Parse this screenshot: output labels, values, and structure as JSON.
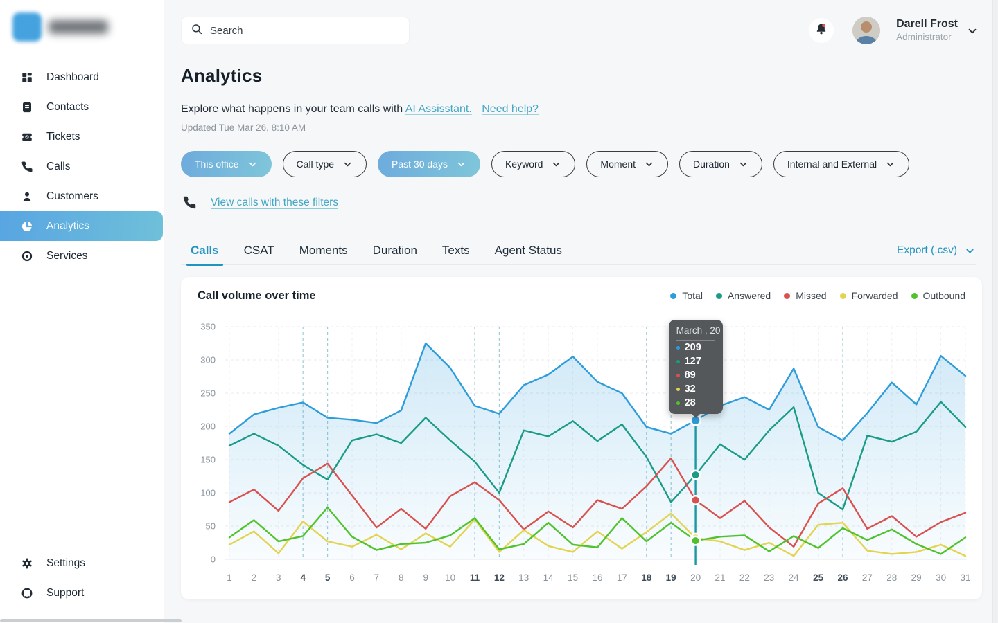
{
  "theme": {
    "accent_blue": "#2D9CDB",
    "link_teal": "#2093C0",
    "active_gradient_from": "#58A5E2",
    "active_gradient_to": "#6FC0DA",
    "tooltip_bg": "#55585B"
  },
  "sidebar": {
    "nav": [
      {
        "label": "Dashboard",
        "icon": "dashboard-grid-icon",
        "active": false
      },
      {
        "label": "Contacts",
        "icon": "contacts-book-icon",
        "active": false
      },
      {
        "label": "Tickets",
        "icon": "ticket-icon",
        "active": false
      },
      {
        "label": "Calls",
        "icon": "phone-icon",
        "active": false
      },
      {
        "label": "Customers",
        "icon": "person-icon",
        "active": false
      },
      {
        "label": "Analytics",
        "icon": "pie-chart-icon",
        "active": true
      },
      {
        "label": "Services",
        "icon": "circle-dot-icon",
        "active": false
      }
    ],
    "footer_nav": [
      {
        "label": "Settings",
        "icon": "gear-icon",
        "active": false
      },
      {
        "label": "Support",
        "icon": "lifebuoy-icon",
        "active": false
      }
    ]
  },
  "header": {
    "search_placeholder": "Search",
    "user": {
      "name": "Darell Frost",
      "role": "Administrator"
    }
  },
  "page": {
    "title": "Analytics",
    "subtitle_prefix": "Explore what happens in your team calls with",
    "subtitle_link1": "AI Assisstant.",
    "subtitle_link2": "Need help?",
    "updated": "Updated Tue Mar 26, 8:10 AM",
    "filters": [
      {
        "label": "This office",
        "active": true
      },
      {
        "label": "Call type",
        "active": false
      },
      {
        "label": "Past 30 days",
        "active": true
      },
      {
        "label": "Keyword",
        "active": false
      },
      {
        "label": "Moment",
        "active": false
      },
      {
        "label": "Duration",
        "active": false
      },
      {
        "label": "Internal and External",
        "active": false
      }
    ],
    "view_calls_link": "View calls with these filters",
    "tabs": [
      {
        "label": "Calls",
        "active": true
      },
      {
        "label": "CSAT",
        "active": false
      },
      {
        "label": "Moments",
        "active": false
      },
      {
        "label": "Duration",
        "active": false
      },
      {
        "label": "Texts",
        "active": false
      },
      {
        "label": "Agent Status",
        "active": false
      }
    ],
    "export_label": "Export (.csv)"
  },
  "chart_data": {
    "type": "line",
    "title": "Call volume over time",
    "xlabel": "",
    "ylabel": "",
    "ylim": [
      0,
      350
    ],
    "yticks": [
      0,
      50,
      100,
      150,
      200,
      250,
      300,
      350
    ],
    "x": [
      1,
      2,
      3,
      4,
      5,
      6,
      7,
      8,
      9,
      10,
      11,
      12,
      13,
      14,
      15,
      16,
      17,
      18,
      19,
      20,
      21,
      22,
      23,
      24,
      25,
      26,
      27,
      28,
      29,
      30,
      31
    ],
    "weekend_days": [
      4,
      5,
      11,
      12,
      18,
      19,
      25,
      26
    ],
    "grid": "dashed",
    "legend_position": "top-right",
    "series": [
      {
        "name": "Total",
        "color": "#2D9CDB",
        "area": true,
        "values": [
          189,
          218,
          228,
          236,
          213,
          210,
          205,
          224,
          325,
          288,
          231,
          219,
          262,
          278,
          305,
          267,
          250,
          199,
          189,
          209,
          231,
          244,
          225,
          287,
          199,
          179,
          220,
          266,
          233,
          306,
          276
        ]
      },
      {
        "name": "Answered",
        "color": "#1A9B86",
        "area": false,
        "values": [
          171,
          189,
          171,
          142,
          120,
          179,
          188,
          175,
          213,
          179,
          147,
          100,
          194,
          185,
          208,
          178,
          203,
          154,
          86,
          127,
          173,
          150,
          194,
          229,
          100,
          75,
          186,
          177,
          192,
          237,
          199
        ]
      },
      {
        "name": "Missed",
        "color": "#D9514E",
        "area": false,
        "values": [
          86,
          105,
          73,
          122,
          144,
          96,
          48,
          76,
          46,
          95,
          116,
          89,
          45,
          72,
          48,
          89,
          76,
          110,
          152,
          89,
          62,
          88,
          48,
          19,
          84,
          107,
          46,
          65,
          34,
          56,
          70
        ]
      },
      {
        "name": "Forwarded",
        "color": "#E3D44F",
        "area": false,
        "values": [
          22,
          42,
          9,
          57,
          27,
          19,
          37,
          15,
          39,
          19,
          60,
          11,
          44,
          20,
          11,
          42,
          16,
          41,
          69,
          32,
          27,
          14,
          25,
          5,
          52,
          55,
          13,
          8,
          11,
          22,
          5
        ]
      },
      {
        "name": "Outbound",
        "color": "#50C22C",
        "area": false,
        "values": [
          33,
          59,
          27,
          35,
          78,
          34,
          14,
          23,
          25,
          36,
          62,
          15,
          23,
          55,
          22,
          18,
          62,
          27,
          55,
          28,
          34,
          36,
          12,
          35,
          17,
          47,
          29,
          45,
          23,
          8,
          33
        ]
      }
    ],
    "tooltip": {
      "day": 20,
      "title": "March , 20",
      "values": [
        209,
        127,
        89,
        32,
        28
      ]
    }
  }
}
